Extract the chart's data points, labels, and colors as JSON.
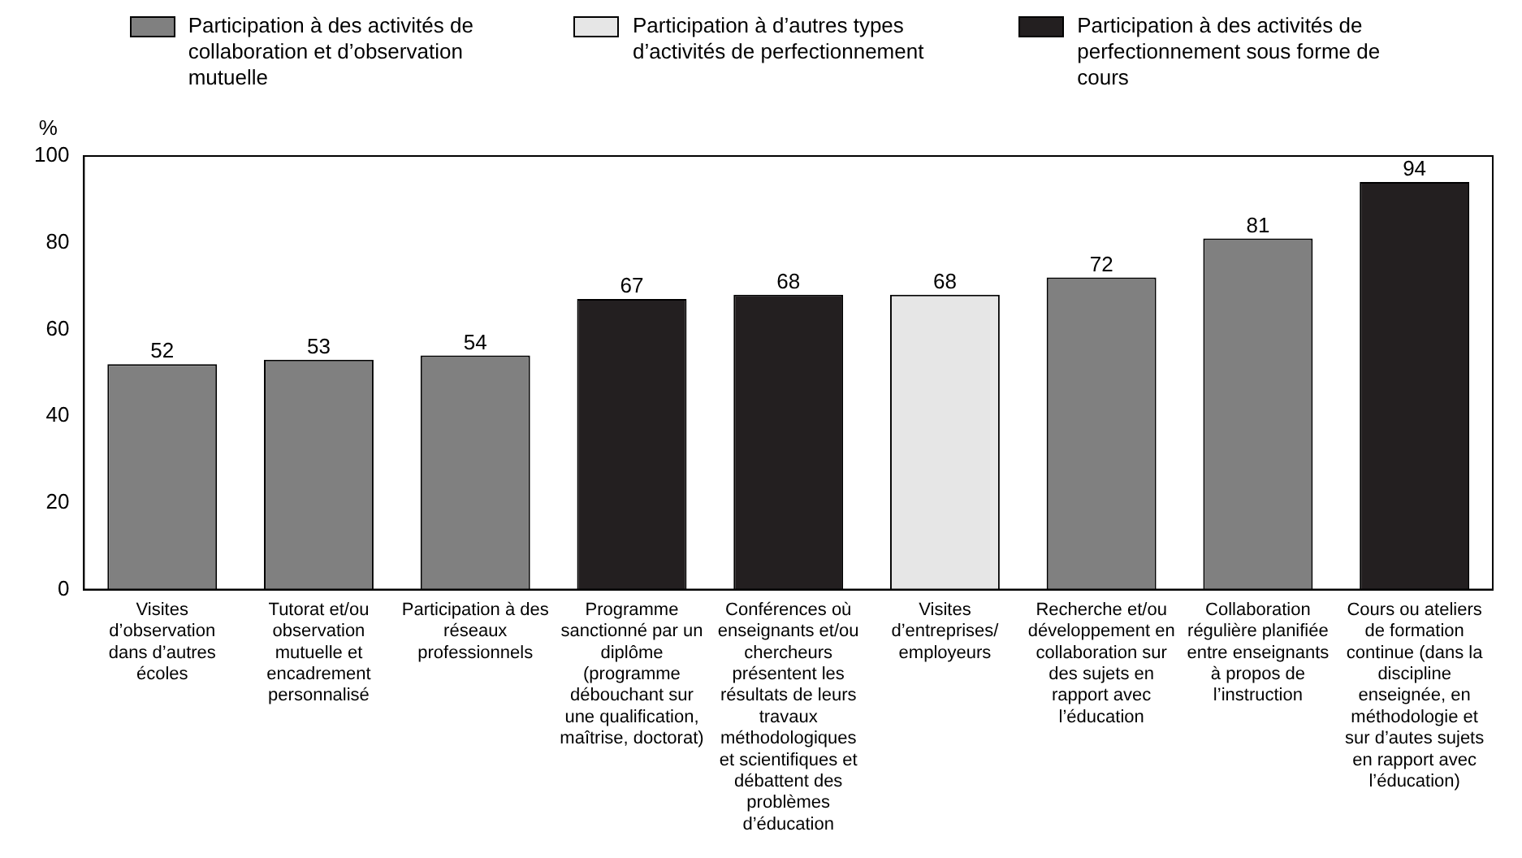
{
  "chart_data": {
    "type": "bar",
    "ylabel": "%",
    "categories": [
      "Visites d’observation dans d’autres écoles",
      "Tutorat et/ou observation mutuelle et encadrement personnalisé",
      "Participation à des réseaux professionnels",
      "Programme sanctionné par un diplôme (programme débouchant sur une qualification, maîtrise, doctorat)",
      "Conférences où enseignants et/ou chercheurs présentent les résultats de leurs travaux méthodologiques et scientifiques et débattent des problèmes d’éducation",
      "Visites d’entreprises/ employeurs",
      "Recherche et/ou développement en collaboration sur des sujets en rapport avec l’éducation",
      "Collaboration régulière planifiée entre enseignants à propos de l’instruction",
      "Cours ou ateliers de formation continue (dans la discipline enseignée, en méthodologie et sur d’autes sujets en rapport avec l’éducation)"
    ],
    "series": [
      {
        "name": "Participation à des activités de collaboration et d’observation mutuelle",
        "color": "#808080",
        "values": [
          52,
          53,
          54,
          null,
          null,
          null,
          72,
          81,
          null
        ]
      },
      {
        "name": "Participation à d’autres types d’activités de perfectionnement",
        "color": "#e6e6e6",
        "values": [
          null,
          null,
          null,
          null,
          null,
          68,
          null,
          null,
          null
        ]
      },
      {
        "name": "Participation à des activités de perfectionnement sous forme de cours",
        "color": "#231f20",
        "values": [
          null,
          null,
          null,
          67,
          68,
          null,
          null,
          null,
          94
        ]
      }
    ],
    "ylim": [
      0,
      100
    ],
    "yticks": [
      0,
      20,
      40,
      60,
      80,
      100
    ],
    "grid": false,
    "legend": "top",
    "data_labels": true
  }
}
